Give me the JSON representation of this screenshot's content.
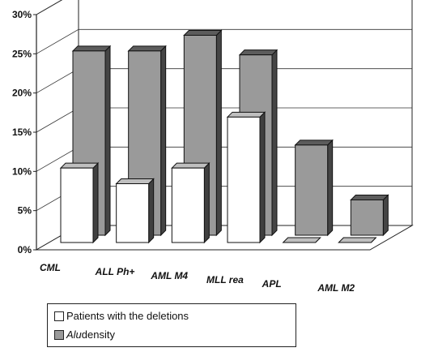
{
  "chart_data": {
    "type": "bar",
    "categories": [
      "CML",
      "ALL Ph+",
      "AML M4",
      "MLL rea",
      "APL",
      "AML M2"
    ],
    "series": [
      {
        "name": "Patients with the deletions",
        "values": [
          9.5,
          7.5,
          9.5,
          16,
          0,
          0
        ],
        "color": "#ffffff"
      },
      {
        "name": "Alu density",
        "values": [
          23.5,
          23.5,
          25.5,
          23.0,
          11.5,
          4.5
        ],
        "color": "#9a9a9a"
      }
    ],
    "y_tick_labels": [
      "0%",
      "5%",
      "10%",
      "15%",
      "20%",
      "25%",
      "30%"
    ],
    "ylim": [
      0,
      30
    ],
    "grid": true,
    "legend_position": "bottom-left",
    "legend": [
      {
        "prefix": "",
        "italic": "",
        "suffix": "Patients with the deletions"
      },
      {
        "prefix": "",
        "italic": "Alu",
        "suffix": " density"
      }
    ]
  }
}
